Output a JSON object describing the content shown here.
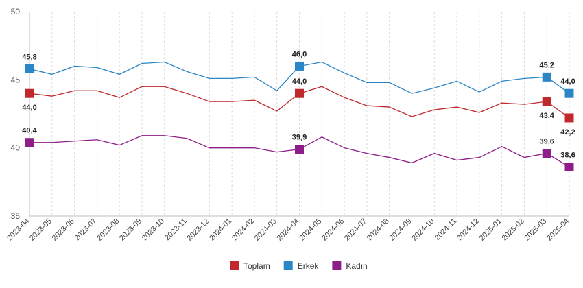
{
  "chart_data": {
    "type": "line",
    "title": "",
    "xlabel": "",
    "ylabel": "",
    "ylim": [
      35,
      50
    ],
    "yticks": [
      35,
      40,
      45,
      50
    ],
    "grid": "vertical dashed",
    "legend_position": "bottom-center",
    "categories": [
      "2023-04",
      "2023-05",
      "2023-06",
      "2023-07",
      "2023-08",
      "2023-09",
      "2023-10",
      "2023-11",
      "2023-12",
      "2024-01",
      "2024-02",
      "2024-03",
      "2024-04",
      "2024-05",
      "2024-06",
      "2024-07",
      "2024-08",
      "2024-09",
      "2024-10",
      "2024-11",
      "2024-12",
      "2025-01",
      "2025-02",
      "2025-03",
      "2025-04"
    ],
    "series": [
      {
        "name": "Toplam",
        "color": "#c0282d",
        "values": [
          44.0,
          43.8,
          44.2,
          44.2,
          43.7,
          44.5,
          44.5,
          44.0,
          43.4,
          43.4,
          43.5,
          42.7,
          44.0,
          44.5,
          43.7,
          43.1,
          43.0,
          42.3,
          42.8,
          43.0,
          42.6,
          43.3,
          43.2,
          43.4,
          42.2
        ],
        "labels": [
          {
            "index": 0,
            "text": "44,0",
            "pos": "below"
          },
          {
            "index": 12,
            "text": "44,0",
            "pos": "above"
          },
          {
            "index": 23,
            "text": "43,4",
            "pos": "below"
          },
          {
            "index": 24,
            "text": "42,2",
            "pos": "below"
          }
        ]
      },
      {
        "name": "Erkek",
        "color": "#2b86c5",
        "values": [
          45.8,
          45.4,
          46.0,
          45.9,
          45.4,
          46.2,
          46.3,
          45.6,
          45.1,
          45.1,
          45.2,
          44.2,
          46.0,
          46.3,
          45.5,
          44.8,
          44.8,
          44.0,
          44.4,
          44.9,
          44.1,
          44.9,
          45.1,
          45.2,
          44.0
        ],
        "labels": [
          {
            "index": 0,
            "text": "45,8",
            "pos": "above"
          },
          {
            "index": 12,
            "text": "46,0",
            "pos": "above"
          },
          {
            "index": 23,
            "text": "45,2",
            "pos": "above"
          },
          {
            "index": 24,
            "text": "44,0",
            "pos": "above"
          }
        ]
      },
      {
        "name": "Kadın",
        "color": "#8e1d8a",
        "values": [
          40.4,
          40.4,
          40.5,
          40.6,
          40.2,
          40.9,
          40.9,
          40.7,
          40.0,
          40.0,
          40.0,
          39.7,
          39.9,
          40.8,
          40.0,
          39.6,
          39.3,
          38.9,
          39.6,
          39.1,
          39.3,
          40.1,
          39.3,
          39.6,
          38.6
        ],
        "labels": [
          {
            "index": 0,
            "text": "40,4",
            "pos": "above"
          },
          {
            "index": 12,
            "text": "39,9",
            "pos": "above"
          },
          {
            "index": 23,
            "text": "39,6",
            "pos": "above"
          },
          {
            "index": 24,
            "text": "38,6",
            "pos": "above"
          }
        ]
      }
    ]
  }
}
